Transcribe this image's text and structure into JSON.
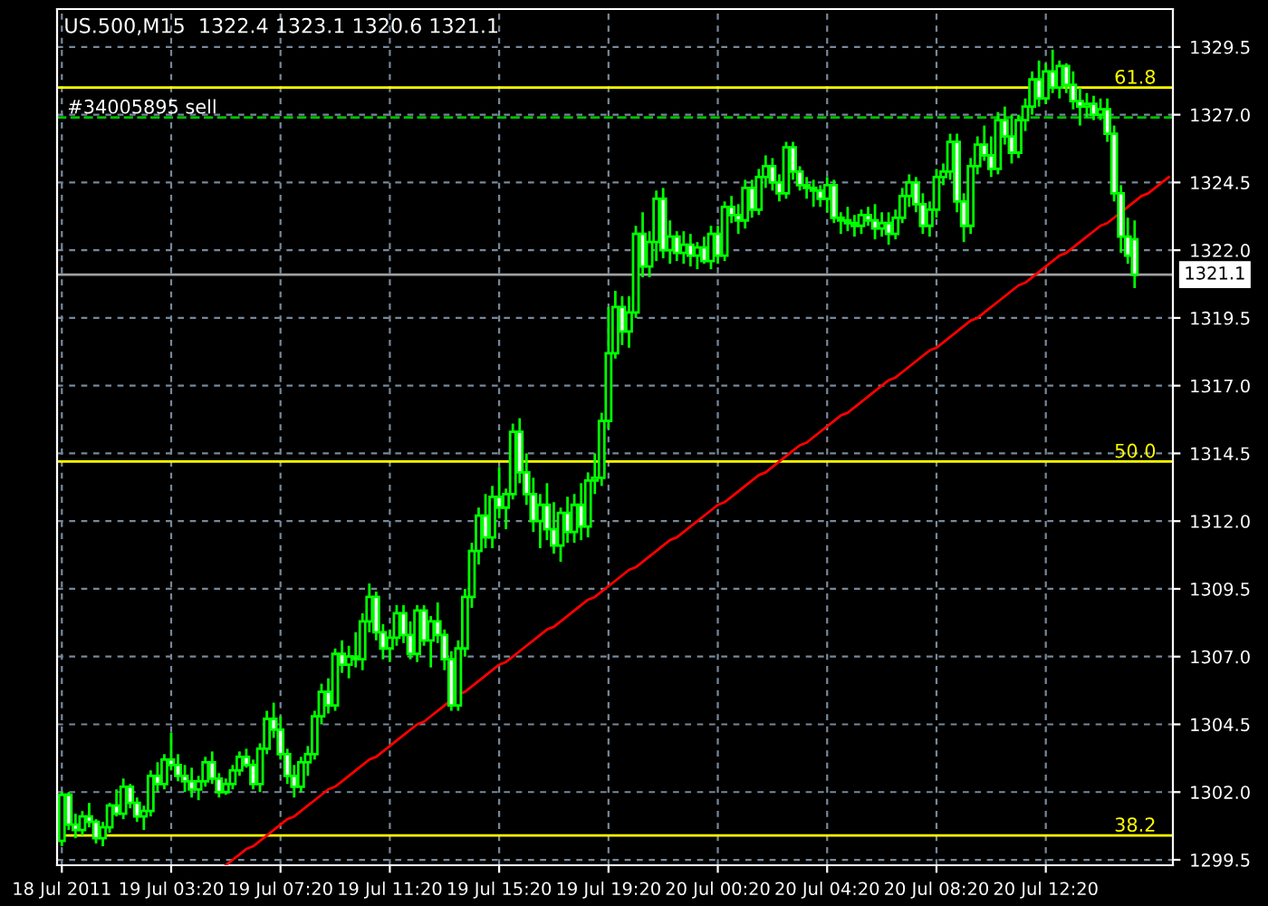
{
  "chart_data": {
    "type": "candlestick",
    "title": "US.500,M15  1322.4 1323.1 1320.6 1321.1",
    "categories": [
      "18 Jul 2011",
      null,
      null,
      null,
      null,
      null,
      null,
      null,
      null,
      null,
      null,
      null,
      null,
      null,
      null,
      null,
      "19 Jul 03:20",
      null,
      null,
      null,
      null,
      null,
      null,
      null,
      null,
      null,
      null,
      null,
      null,
      null,
      null,
      null,
      "19 Jul 07:20",
      null,
      null,
      null,
      null,
      null,
      null,
      null,
      null,
      null,
      null,
      null,
      null,
      null,
      null,
      null,
      "19 Jul 11:20",
      null,
      null,
      null,
      null,
      null,
      null,
      null,
      null,
      null,
      null,
      null,
      null,
      null,
      null,
      null,
      "19 Jul 15:20",
      null,
      null,
      null,
      null,
      null,
      null,
      null,
      null,
      null,
      null,
      null,
      null,
      null,
      null,
      null,
      "19 Jul 19:20",
      null,
      null,
      null,
      null,
      null,
      null,
      null,
      null,
      null,
      null,
      null,
      null,
      null,
      null,
      null,
      "20 Jul 00:20",
      null,
      null,
      null,
      null,
      null,
      null,
      null,
      null,
      null,
      null,
      null,
      null,
      null,
      null,
      null,
      "20 Jul 04:20",
      null,
      null,
      null,
      null,
      null,
      null,
      null,
      null,
      null,
      null,
      null,
      null,
      null,
      null,
      null,
      "20 Jul 08:20",
      null,
      null,
      null,
      null,
      null,
      null,
      null,
      null,
      null,
      null,
      null,
      null,
      null,
      null,
      null,
      "20 Jul 12:20",
      null,
      null,
      null,
      null,
      null,
      null,
      null,
      null,
      null,
      null,
      null,
      null,
      null,
      null,
      null,
      null,
      null,
      null
    ],
    "annotations": [
      {
        "text": "61.8",
        "y": 1328.0
      },
      {
        "text": "50.0",
        "y": 1314.2
      },
      {
        "text": "38.2",
        "y": 1300.4
      }
    ],
    "series": [
      {
        "color": "#00ff00",
        "ohlc": [
          [
            1300.2,
            1302.0,
            1300.0,
            1301.9
          ],
          [
            1301.9,
            1302.0,
            1300.6,
            1300.8
          ],
          [
            1300.8,
            1301.2,
            1300.3,
            1300.6
          ],
          [
            1300.6,
            1301.3,
            1300.4,
            1301.1
          ],
          [
            1301.1,
            1301.6,
            1300.7,
            1300.9
          ],
          [
            1300.9,
            1301.0,
            1300.1,
            1300.3
          ],
          [
            1300.3,
            1300.9,
            1300.0,
            1300.7
          ],
          [
            1300.7,
            1301.6,
            1300.5,
            1301.5
          ],
          [
            1301.5,
            1302.1,
            1301.1,
            1301.2
          ],
          [
            1301.2,
            1302.5,
            1301.0,
            1302.2
          ],
          [
            1302.2,
            1302.3,
            1301.4,
            1301.6
          ],
          [
            1301.6,
            1301.8,
            1300.9,
            1301.1
          ],
          [
            1301.1,
            1301.5,
            1300.6,
            1301.3
          ],
          [
            1301.3,
            1302.8,
            1301.1,
            1302.6
          ],
          [
            1302.6,
            1303.1,
            1302.0,
            1302.3
          ],
          [
            1302.3,
            1303.4,
            1302.1,
            1303.2
          ],
          [
            1303.2,
            1304.2,
            1302.8,
            1303.0
          ],
          [
            1303.0,
            1303.4,
            1302.4,
            1302.6
          ],
          [
            1302.6,
            1303.0,
            1302.0,
            1302.4
          ],
          [
            1302.4,
            1302.9,
            1301.8,
            1302.1
          ],
          [
            1302.1,
            1302.6,
            1301.7,
            1302.4
          ],
          [
            1302.4,
            1303.3,
            1302.2,
            1303.1
          ],
          [
            1303.1,
            1303.5,
            1302.3,
            1302.5
          ],
          [
            1302.5,
            1302.7,
            1301.8,
            1302.0
          ],
          [
            1302.0,
            1302.5,
            1301.9,
            1302.3
          ],
          [
            1302.3,
            1303.0,
            1302.1,
            1302.8
          ],
          [
            1302.8,
            1303.5,
            1302.6,
            1303.3
          ],
          [
            1303.3,
            1303.6,
            1302.9,
            1303.0
          ],
          [
            1303.0,
            1303.2,
            1302.1,
            1302.3
          ],
          [
            1302.3,
            1303.8,
            1302.0,
            1303.6
          ],
          [
            1303.6,
            1305.0,
            1303.4,
            1304.7
          ],
          [
            1304.7,
            1305.3,
            1304.0,
            1304.3
          ],
          [
            1304.3,
            1304.8,
            1303.2,
            1303.4
          ],
          [
            1303.4,
            1303.6,
            1302.3,
            1302.6
          ],
          [
            1302.6,
            1303.0,
            1301.8,
            1302.2
          ],
          [
            1302.2,
            1303.3,
            1302.0,
            1303.1
          ],
          [
            1303.1,
            1303.7,
            1302.6,
            1303.4
          ],
          [
            1303.4,
            1305.0,
            1303.2,
            1304.8
          ],
          [
            1304.8,
            1306.0,
            1304.5,
            1305.7
          ],
          [
            1305.7,
            1306.2,
            1304.9,
            1305.2
          ],
          [
            1305.2,
            1307.3,
            1305.0,
            1307.1
          ],
          [
            1307.1,
            1307.6,
            1306.4,
            1306.7
          ],
          [
            1306.7,
            1307.4,
            1306.2,
            1307.0
          ],
          [
            1307.0,
            1307.9,
            1306.6,
            1306.9
          ],
          [
            1306.9,
            1308.6,
            1306.5,
            1308.3
          ],
          [
            1308.3,
            1309.7,
            1307.9,
            1309.2
          ],
          [
            1309.2,
            1309.4,
            1307.6,
            1307.9
          ],
          [
            1307.9,
            1308.2,
            1306.9,
            1307.3
          ],
          [
            1307.3,
            1308.0,
            1306.8,
            1307.7
          ],
          [
            1307.7,
            1308.9,
            1307.4,
            1308.6
          ],
          [
            1308.6,
            1308.9,
            1307.5,
            1307.8
          ],
          [
            1307.8,
            1308.3,
            1306.9,
            1307.1
          ],
          [
            1307.1,
            1308.9,
            1306.8,
            1308.7
          ],
          [
            1308.7,
            1308.9,
            1307.4,
            1307.6
          ],
          [
            1307.6,
            1308.5,
            1306.6,
            1308.3
          ],
          [
            1308.3,
            1309.0,
            1307.5,
            1307.8
          ],
          [
            1307.8,
            1308.0,
            1306.5,
            1306.9
          ],
          [
            1306.9,
            1307.2,
            1305.0,
            1305.2
          ],
          [
            1305.2,
            1307.6,
            1305.0,
            1307.3
          ],
          [
            1307.3,
            1309.5,
            1307.0,
            1309.2
          ],
          [
            1309.2,
            1311.2,
            1308.8,
            1310.9
          ],
          [
            1310.9,
            1312.5,
            1310.4,
            1312.2
          ],
          [
            1312.2,
            1313.0,
            1311.0,
            1311.4
          ],
          [
            1311.4,
            1313.3,
            1311.0,
            1312.9
          ],
          [
            1312.9,
            1314.0,
            1312.1,
            1312.5
          ],
          [
            1312.5,
            1313.2,
            1311.7,
            1313.0
          ],
          [
            1313.0,
            1315.6,
            1312.8,
            1315.3
          ],
          [
            1315.3,
            1315.8,
            1313.4,
            1313.8
          ],
          [
            1313.8,
            1314.5,
            1312.6,
            1313.0
          ],
          [
            1313.0,
            1313.6,
            1311.6,
            1312.0
          ],
          [
            1312.0,
            1313.0,
            1311.0,
            1312.6
          ],
          [
            1312.6,
            1313.4,
            1311.3,
            1311.7
          ],
          [
            1311.7,
            1312.7,
            1310.8,
            1311.1
          ],
          [
            1311.1,
            1312.5,
            1310.5,
            1312.3
          ],
          [
            1312.3,
            1312.9,
            1311.2,
            1311.6
          ],
          [
            1311.6,
            1313.0,
            1311.2,
            1312.6
          ],
          [
            1312.6,
            1313.4,
            1311.3,
            1311.8
          ],
          [
            1311.8,
            1313.8,
            1311.4,
            1313.5
          ],
          [
            1313.5,
            1314.5,
            1313.0,
            1313.6
          ],
          [
            1313.6,
            1316.0,
            1313.3,
            1315.7
          ],
          [
            1315.7,
            1319.9,
            1315.4,
            1318.2
          ],
          [
            1318.2,
            1320.5,
            1318.0,
            1319.9
          ],
          [
            1319.9,
            1320.3,
            1318.5,
            1319.0
          ],
          [
            1319.0,
            1320.3,
            1318.4,
            1319.7
          ],
          [
            1319.7,
            1322.9,
            1319.5,
            1322.6
          ],
          [
            1322.6,
            1323.4,
            1321.0,
            1321.4
          ],
          [
            1321.4,
            1322.7,
            1321.0,
            1322.3
          ],
          [
            1322.3,
            1324.2,
            1321.6,
            1323.9
          ],
          [
            1323.9,
            1324.3,
            1321.7,
            1322.0
          ],
          [
            1322.0,
            1323.1,
            1321.5,
            1322.5
          ],
          [
            1322.5,
            1322.7,
            1321.6,
            1321.9
          ],
          [
            1321.9,
            1322.7,
            1321.5,
            1322.2
          ],
          [
            1322.2,
            1322.6,
            1321.4,
            1321.8
          ],
          [
            1321.8,
            1322.3,
            1321.3,
            1322.1
          ],
          [
            1322.1,
            1322.5,
            1321.5,
            1321.6
          ],
          [
            1321.6,
            1322.9,
            1321.3,
            1322.6
          ],
          [
            1322.6,
            1322.9,
            1321.5,
            1321.8
          ],
          [
            1321.8,
            1323.8,
            1321.6,
            1323.6
          ],
          [
            1323.6,
            1324.0,
            1323.0,
            1323.3
          ],
          [
            1323.3,
            1323.7,
            1322.6,
            1323.1
          ],
          [
            1323.1,
            1324.6,
            1322.8,
            1324.3
          ],
          [
            1324.3,
            1324.6,
            1323.2,
            1323.5
          ],
          [
            1323.5,
            1325.0,
            1323.3,
            1324.7
          ],
          [
            1324.7,
            1325.5,
            1324.3,
            1325.1
          ],
          [
            1325.1,
            1325.4,
            1324.2,
            1324.5
          ],
          [
            1324.5,
            1324.8,
            1323.8,
            1324.1
          ],
          [
            1324.1,
            1326.0,
            1323.9,
            1325.8
          ],
          [
            1325.8,
            1326.0,
            1324.6,
            1324.9
          ],
          [
            1324.9,
            1325.1,
            1324.2,
            1324.4
          ],
          [
            1324.4,
            1324.7,
            1323.9,
            1324.3
          ],
          [
            1324.3,
            1324.6,
            1323.6,
            1324.2
          ],
          [
            1324.2,
            1324.4,
            1323.6,
            1323.9
          ],
          [
            1323.9,
            1324.7,
            1323.4,
            1324.4
          ],
          [
            1324.4,
            1324.6,
            1323.0,
            1323.2
          ],
          [
            1323.2,
            1323.4,
            1322.6,
            1323.1
          ],
          [
            1323.1,
            1323.6,
            1322.7,
            1323.0
          ],
          [
            1323.0,
            1323.3,
            1322.5,
            1322.9
          ],
          [
            1322.9,
            1323.5,
            1322.6,
            1323.3
          ],
          [
            1323.3,
            1323.6,
            1322.9,
            1323.1
          ],
          [
            1323.1,
            1323.7,
            1322.4,
            1322.8
          ],
          [
            1322.8,
            1323.4,
            1322.5,
            1323.0
          ],
          [
            1323.0,
            1323.4,
            1322.2,
            1322.6
          ],
          [
            1322.6,
            1323.5,
            1322.4,
            1323.2
          ],
          [
            1323.2,
            1324.3,
            1323.0,
            1324.0
          ],
          [
            1324.0,
            1324.8,
            1323.6,
            1324.5
          ],
          [
            1324.5,
            1324.7,
            1323.4,
            1323.7
          ],
          [
            1323.7,
            1324.1,
            1322.6,
            1322.9
          ],
          [
            1322.9,
            1323.8,
            1322.5,
            1323.5
          ],
          [
            1323.5,
            1325.0,
            1323.2,
            1324.7
          ],
          [
            1324.7,
            1325.2,
            1324.4,
            1324.9
          ],
          [
            1324.9,
            1326.3,
            1324.6,
            1326.0
          ],
          [
            1326.0,
            1326.3,
            1323.4,
            1323.8
          ],
          [
            1323.8,
            1324.1,
            1322.3,
            1322.9
          ],
          [
            1322.9,
            1325.4,
            1322.6,
            1325.1
          ],
          [
            1325.1,
            1326.2,
            1324.8,
            1325.9
          ],
          [
            1325.9,
            1326.6,
            1325.3,
            1325.5
          ],
          [
            1325.5,
            1326.2,
            1324.7,
            1325.0
          ],
          [
            1325.0,
            1327.1,
            1324.8,
            1326.8
          ],
          [
            1326.8,
            1327.3,
            1325.9,
            1326.2
          ],
          [
            1326.2,
            1327.0,
            1325.2,
            1325.6
          ],
          [
            1325.6,
            1327.0,
            1325.4,
            1326.8
          ],
          [
            1326.8,
            1327.6,
            1326.4,
            1327.3
          ],
          [
            1327.3,
            1328.6,
            1327.0,
            1328.3
          ],
          [
            1328.3,
            1329.0,
            1327.3,
            1327.6
          ],
          [
            1327.6,
            1328.9,
            1327.4,
            1328.6
          ],
          [
            1328.6,
            1329.4,
            1327.8,
            1328.0
          ],
          [
            1328.0,
            1329.0,
            1327.6,
            1328.8
          ],
          [
            1328.8,
            1328.9,
            1327.8,
            1328.1
          ],
          [
            1328.1,
            1328.6,
            1327.2,
            1327.5
          ],
          [
            1327.5,
            1328.0,
            1326.6,
            1327.3
          ],
          [
            1327.3,
            1327.8,
            1326.9,
            1327.4
          ],
          [
            1327.4,
            1327.7,
            1326.8,
            1327.0
          ],
          [
            1327.0,
            1327.6,
            1326.8,
            1327.2
          ],
          [
            1327.2,
            1327.6,
            1326.0,
            1326.3
          ],
          [
            1326.3,
            1326.6,
            1323.8,
            1324.1
          ],
          [
            1324.1,
            1324.4,
            1321.9,
            1322.5
          ],
          [
            1322.5,
            1323.2,
            1321.5,
            1321.8
          ],
          [
            1322.4,
            1323.1,
            1320.6,
            1321.1
          ],
          null,
          null,
          null,
          null,
          null
        ]
      },
      {
        "type": "line",
        "color": "#ff0000",
        "values": [
          null,
          null,
          null,
          null,
          null,
          null,
          null,
          null,
          null,
          null,
          null,
          null,
          null,
          null,
          null,
          null,
          null,
          null,
          null,
          null,
          null,
          null,
          null,
          null,
          1299.3,
          1299.5,
          1299.7,
          1299.9,
          1300.0,
          1300.2,
          1300.4,
          1300.6,
          1300.8,
          1301.0,
          1301.1,
          1301.3,
          1301.5,
          1301.7,
          1301.9,
          1302.1,
          1302.2,
          1302.4,
          1302.6,
          1302.8,
          1303.0,
          1303.2,
          1303.3,
          1303.5,
          1303.7,
          1303.9,
          1304.1,
          1304.3,
          1304.5,
          1304.6,
          1304.8,
          1305.0,
          1305.2,
          1305.4,
          1305.6,
          1305.7,
          1305.9,
          1306.1,
          1306.3,
          1306.5,
          1306.7,
          1306.8,
          1307.0,
          1307.2,
          1307.4,
          1307.6,
          1307.8,
          1308.0,
          1308.1,
          1308.3,
          1308.5,
          1308.7,
          1308.9,
          1309.1,
          1309.2,
          1309.4,
          1309.6,
          1309.8,
          1310.0,
          1310.2,
          1310.3,
          1310.5,
          1310.7,
          1310.9,
          1311.1,
          1311.3,
          1311.4,
          1311.6,
          1311.8,
          1312.0,
          1312.2,
          1312.4,
          1312.6,
          1312.7,
          1312.9,
          1313.1,
          1313.3,
          1313.5,
          1313.7,
          1313.8,
          1314.0,
          1314.2,
          1314.4,
          1314.6,
          1314.8,
          1314.9,
          1315.1,
          1315.3,
          1315.5,
          1315.7,
          1315.9,
          1316.0,
          1316.2,
          1316.4,
          1316.6,
          1316.8,
          1317.0,
          1317.2,
          1317.3,
          1317.5,
          1317.7,
          1317.9,
          1318.1,
          1318.3,
          1318.4,
          1318.6,
          1318.8,
          1319.0,
          1319.2,
          1319.4,
          1319.5,
          1319.7,
          1319.9,
          1320.1,
          1320.3,
          1320.5,
          1320.7,
          1320.8,
          1321.0,
          1321.2,
          1321.4,
          1321.6,
          1321.8,
          1321.9,
          1322.1,
          1322.3,
          1322.5,
          1322.7,
          1322.9,
          1323.0,
          1323.2,
          1323.4,
          1323.6,
          1323.8,
          1324.0,
          1324.1,
          1324.3,
          1324.5,
          1324.7
        ]
      }
    ],
    "ylim": [
      1299.3,
      1330.9
    ],
    "yticks": [
      {
        "value": 1299.5,
        "label": "1299.5"
      },
      {
        "value": 1302.0,
        "label": "1302.0"
      },
      {
        "value": 1304.5,
        "label": "1304.5"
      },
      {
        "value": 1307.0,
        "label": "1307.0"
      },
      {
        "value": 1309.5,
        "label": "1309.5"
      },
      {
        "value": 1312.0,
        "label": "1312.0"
      },
      {
        "value": 1314.5,
        "label": "1314.5"
      },
      {
        "value": 1317.0,
        "label": "1317.0"
      },
      {
        "value": 1319.5,
        "label": "1319.5"
      },
      {
        "value": 1322.0,
        "label": "1322.0"
      },
      {
        "value": 1324.5,
        "label": "1324.5"
      },
      {
        "value": 1327.0,
        "label": "1327.0"
      },
      {
        "value": 1329.5,
        "label": "1329.5"
      }
    ],
    "ref_lines": [
      {
        "axis": "y",
        "value": 1328.0,
        "color": "#ffff00",
        "line_style": "solid"
      },
      {
        "axis": "y",
        "value": 1314.2,
        "color": "#ffff00",
        "line_style": "solid"
      },
      {
        "axis": "y",
        "value": 1300.4,
        "color": "#ffff00",
        "line_style": "solid"
      },
      {
        "axis": "y",
        "value": 1321.1,
        "label": "1321.1",
        "color": "#a0a0a0",
        "line_style": "solid"
      },
      {
        "axis": "y",
        "value": 1326.9,
        "label": "#34005895 sell",
        "color": "#00c000",
        "line_style": "dashed"
      }
    ],
    "grid": true
  }
}
